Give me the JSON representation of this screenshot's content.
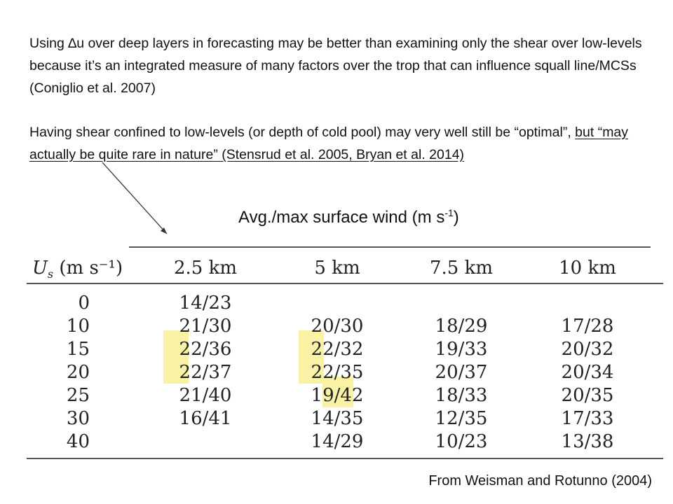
{
  "text": {
    "paragraph1": "Using ∆u over deep layers in forecasting may be better than examining only the shear over low-levels because it’s an integrated measure of many factors over the trop that can influence squall line/MCSs (Coniglio et al. 2007)",
    "paragraph2_plain": "Having shear confined to low-levels (or depth of cold pool) may very well still be “optimal”, ",
    "paragraph2_underlined": "but “may actually be quite rare in nature” (Stensrud et al. 2005, Bryan et al. 2014)",
    "caption_main": "Avg./max surface wind (m s",
    "caption_sup": "-1",
    "caption_end": ")",
    "source": "From Weisman and Rotunno (2004)"
  },
  "table": {
    "header_var": "U",
    "header_sub": "s",
    "header_units": "(m s⁻¹)",
    "columns": [
      "2.5 km",
      "5 km",
      "7.5 km",
      "10 km"
    ],
    "rows": [
      {
        "us": "0",
        "cells": [
          "14/23",
          "",
          "",
          ""
        ]
      },
      {
        "us": "10",
        "cells": [
          "21/30",
          "20/30",
          "18/29",
          "17/28"
        ]
      },
      {
        "us": "15",
        "cells": [
          "22/36",
          "22/32",
          "19/33",
          "20/32"
        ]
      },
      {
        "us": "20",
        "cells": [
          "22/37",
          "22/35",
          "20/37",
          "20/34"
        ]
      },
      {
        "us": "25",
        "cells": [
          "21/40",
          "19/42",
          "18/33",
          "20/35"
        ]
      },
      {
        "us": "30",
        "cells": [
          "16/41",
          "14/35",
          "12/35",
          "17/33"
        ]
      },
      {
        "us": "40",
        "cells": [
          "",
          "14/29",
          "10/23",
          "13/38"
        ]
      }
    ],
    "highlight_color": "#f9f1a3"
  }
}
